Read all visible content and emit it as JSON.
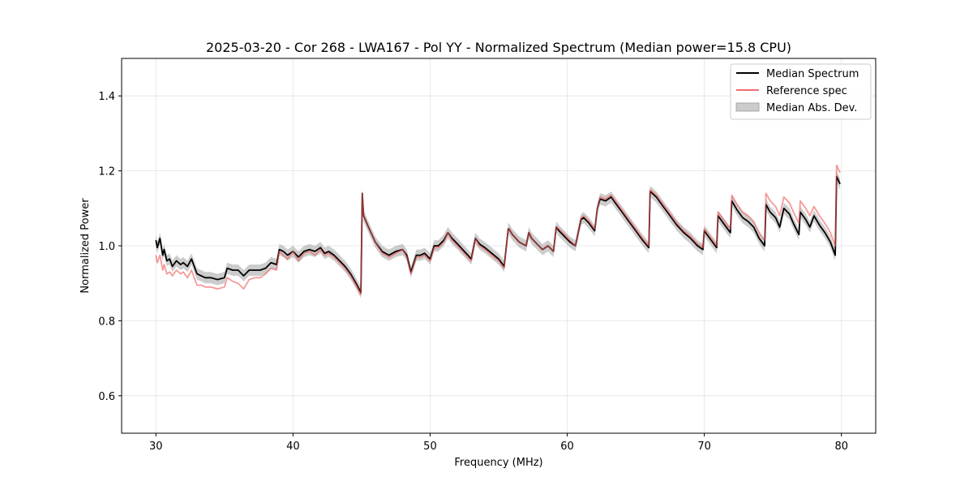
{
  "chart_data": {
    "type": "line",
    "title": "2025-03-20 - Cor 268 - LWA167 - Pol YY - Normalized Spectrum (Median power=15.8 CPU)",
    "xlabel": "Frequency (MHz)",
    "ylabel": "Normalized Power",
    "xlim": [
      27.5,
      82.5
    ],
    "ylim": [
      0.5,
      1.5
    ],
    "xticks": [
      30,
      40,
      50,
      60,
      70,
      80
    ],
    "yticks": [
      0.6,
      0.8,
      1.0,
      1.2,
      1.4
    ],
    "xtick_labels": [
      "30",
      "40",
      "50",
      "60",
      "70",
      "80"
    ],
    "ytick_labels": [
      "0.6",
      "0.8",
      "1.0",
      "1.2",
      "1.4"
    ],
    "grid": true,
    "legend_position": "top-right",
    "colors": {
      "median": "#000000",
      "reference": "#ee5555",
      "mad": "#aaaaaa"
    },
    "legend": [
      {
        "label": "Median Spectrum",
        "kind": "line",
        "color": "#000000"
      },
      {
        "label": "Reference spec",
        "kind": "line",
        "color": "#ee5555"
      },
      {
        "label": "Median Abs. Dev.",
        "kind": "patch",
        "color": "#aaaaaa"
      }
    ],
    "mad_width": 0.015,
    "series": [
      {
        "name": "Median Spectrum",
        "x": [
          30.0,
          30.1,
          30.3,
          30.5,
          30.6,
          30.8,
          31.0,
          31.2,
          31.5,
          31.8,
          32.0,
          32.3,
          32.6,
          32.9,
          33.0,
          33.3,
          33.6,
          34.0,
          34.5,
          35.0,
          35.2,
          35.6,
          36.0,
          36.4,
          36.8,
          37.2,
          37.6,
          38.0,
          38.4,
          38.8,
          39.0,
          39.3,
          39.6,
          40.0,
          40.4,
          40.8,
          41.2,
          41.6,
          42.0,
          42.3,
          42.6,
          43.0,
          43.4,
          43.8,
          44.2,
          44.6,
          44.95,
          45.05,
          45.15,
          45.5,
          46.0,
          46.5,
          47.0,
          47.5,
          48.0,
          48.3,
          48.6,
          49.0,
          49.3,
          49.6,
          50.0,
          50.3,
          50.6,
          51.0,
          51.3,
          51.6,
          52.0,
          52.5,
          53.0,
          53.3,
          53.6,
          54.0,
          54.5,
          55.0,
          55.4,
          55.7,
          55.75,
          56.0,
          56.5,
          57.0,
          57.2,
          57.4,
          57.8,
          58.2,
          58.6,
          59.0,
          59.2,
          59.4,
          59.8,
          60.2,
          60.6,
          61.0,
          61.2,
          61.6,
          62.0,
          62.2,
          62.4,
          62.8,
          63.2,
          63.6,
          64.0,
          64.5,
          65.0,
          65.5,
          65.95,
          66.05,
          66.5,
          67.0,
          67.5,
          68.0,
          68.5,
          69.0,
          69.5,
          69.9,
          70.0,
          70.4,
          70.9,
          71.0,
          71.4,
          71.9,
          72.0,
          72.4,
          72.8,
          73.2,
          73.6,
          74.0,
          74.4,
          74.5,
          74.8,
          75.2,
          75.5,
          75.8,
          76.2,
          76.5,
          76.9,
          77.0,
          77.4,
          77.7,
          78.0,
          78.4,
          78.8,
          79.2,
          79.55,
          79.65,
          79.9
        ],
        "values": [
          1.015,
          0.995,
          1.02,
          0.975,
          0.99,
          0.96,
          0.965,
          0.945,
          0.96,
          0.95,
          0.955,
          0.945,
          0.965,
          0.935,
          0.925,
          0.92,
          0.915,
          0.915,
          0.91,
          0.915,
          0.94,
          0.935,
          0.935,
          0.92,
          0.935,
          0.935,
          0.935,
          0.94,
          0.955,
          0.95,
          0.99,
          0.985,
          0.975,
          0.985,
          0.97,
          0.985,
          0.99,
          0.985,
          0.995,
          0.98,
          0.985,
          0.975,
          0.96,
          0.945,
          0.925,
          0.9,
          0.875,
          1.14,
          1.08,
          1.05,
          1.01,
          0.985,
          0.975,
          0.985,
          0.99,
          0.975,
          0.93,
          0.975,
          0.975,
          0.98,
          0.965,
          1.0,
          1.0,
          1.015,
          1.035,
          1.02,
          1.005,
          0.985,
          0.965,
          1.02,
          1.005,
          0.995,
          0.98,
          0.965,
          0.945,
          1.045,
          1.045,
          1.03,
          1.01,
          1.0,
          1.035,
          1.02,
          1.005,
          0.99,
          1.0,
          0.985,
          1.05,
          1.04,
          1.025,
          1.01,
          1.0,
          1.07,
          1.075,
          1.06,
          1.04,
          1.1,
          1.125,
          1.12,
          1.13,
          1.11,
          1.09,
          1.065,
          1.04,
          1.015,
          0.995,
          1.145,
          1.13,
          1.105,
          1.08,
          1.055,
          1.035,
          1.02,
          1.0,
          0.99,
          1.04,
          1.02,
          0.995,
          1.08,
          1.06,
          1.035,
          1.12,
          1.095,
          1.075,
          1.065,
          1.05,
          1.02,
          1.0,
          1.11,
          1.09,
          1.075,
          1.05,
          1.1,
          1.085,
          1.06,
          1.03,
          1.09,
          1.07,
          1.05,
          1.08,
          1.055,
          1.035,
          1.01,
          0.975,
          1.185,
          1.165
        ],
        "color": "#000000"
      },
      {
        "name": "Reference spec",
        "x": [
          30.0,
          30.1,
          30.3,
          30.5,
          30.6,
          30.8,
          31.0,
          31.2,
          31.5,
          31.8,
          32.0,
          32.3,
          32.6,
          32.9,
          33.0,
          33.3,
          33.6,
          34.0,
          34.5,
          35.0,
          35.2,
          35.6,
          36.0,
          36.4,
          36.8,
          37.2,
          37.6,
          38.0,
          38.4,
          38.8,
          39.0,
          39.3,
          39.6,
          40.0,
          40.4,
          40.8,
          41.2,
          41.6,
          42.0,
          42.3,
          42.6,
          43.0,
          43.4,
          43.8,
          44.2,
          44.6,
          44.95,
          45.05,
          45.15,
          45.5,
          46.0,
          46.5,
          47.0,
          47.5,
          48.0,
          48.3,
          48.6,
          49.0,
          49.3,
          49.6,
          50.0,
          50.3,
          50.6,
          51.0,
          51.3,
          51.6,
          52.0,
          52.5,
          53.0,
          53.3,
          53.6,
          54.0,
          54.5,
          55.0,
          55.4,
          55.7,
          55.75,
          56.0,
          56.5,
          57.0,
          57.2,
          57.4,
          57.8,
          58.2,
          58.6,
          59.0,
          59.2,
          59.4,
          59.8,
          60.2,
          60.6,
          61.0,
          61.2,
          61.6,
          62.0,
          62.2,
          62.4,
          62.8,
          63.2,
          63.6,
          64.0,
          64.5,
          65.0,
          65.5,
          65.95,
          66.05,
          66.5,
          67.0,
          67.5,
          68.0,
          68.5,
          69.0,
          69.5,
          69.9,
          70.0,
          70.4,
          70.9,
          71.0,
          71.4,
          71.9,
          72.0,
          72.4,
          72.8,
          73.2,
          73.6,
          74.0,
          74.4,
          74.5,
          74.8,
          75.2,
          75.5,
          75.8,
          76.2,
          76.5,
          76.9,
          77.0,
          77.4,
          77.7,
          78.0,
          78.4,
          78.8,
          79.2,
          79.55,
          79.65,
          79.9
        ],
        "values": [
          0.975,
          0.955,
          0.975,
          0.935,
          0.95,
          0.925,
          0.93,
          0.92,
          0.935,
          0.925,
          0.93,
          0.915,
          0.935,
          0.905,
          0.895,
          0.895,
          0.89,
          0.89,
          0.885,
          0.89,
          0.915,
          0.905,
          0.9,
          0.885,
          0.91,
          0.915,
          0.915,
          0.925,
          0.94,
          0.935,
          0.985,
          0.975,
          0.965,
          0.985,
          0.96,
          0.98,
          0.985,
          0.975,
          0.99,
          0.975,
          0.98,
          0.97,
          0.955,
          0.94,
          0.92,
          0.895,
          0.87,
          1.14,
          1.08,
          1.05,
          1.01,
          0.98,
          0.97,
          0.98,
          0.99,
          0.97,
          0.925,
          0.97,
          0.97,
          0.975,
          0.96,
          0.995,
          0.995,
          1.01,
          1.035,
          1.015,
          1.0,
          0.98,
          0.96,
          1.02,
          1.0,
          0.99,
          0.975,
          0.96,
          0.94,
          1.045,
          1.045,
          1.03,
          1.01,
          1.0,
          1.035,
          1.02,
          1.005,
          0.99,
          1.0,
          0.985,
          1.05,
          1.045,
          1.03,
          1.015,
          1.0,
          1.075,
          1.08,
          1.065,
          1.045,
          1.1,
          1.13,
          1.125,
          1.135,
          1.115,
          1.095,
          1.07,
          1.045,
          1.02,
          1.0,
          1.15,
          1.135,
          1.11,
          1.085,
          1.06,
          1.04,
          1.025,
          1.005,
          0.995,
          1.045,
          1.025,
          1.0,
          1.09,
          1.07,
          1.045,
          1.135,
          1.11,
          1.09,
          1.08,
          1.065,
          1.035,
          1.015,
          1.14,
          1.12,
          1.105,
          1.08,
          1.13,
          1.115,
          1.09,
          1.06,
          1.12,
          1.1,
          1.08,
          1.105,
          1.08,
          1.06,
          1.035,
          1.0,
          1.215,
          1.195
        ],
        "color": "#ee5555"
      }
    ]
  }
}
